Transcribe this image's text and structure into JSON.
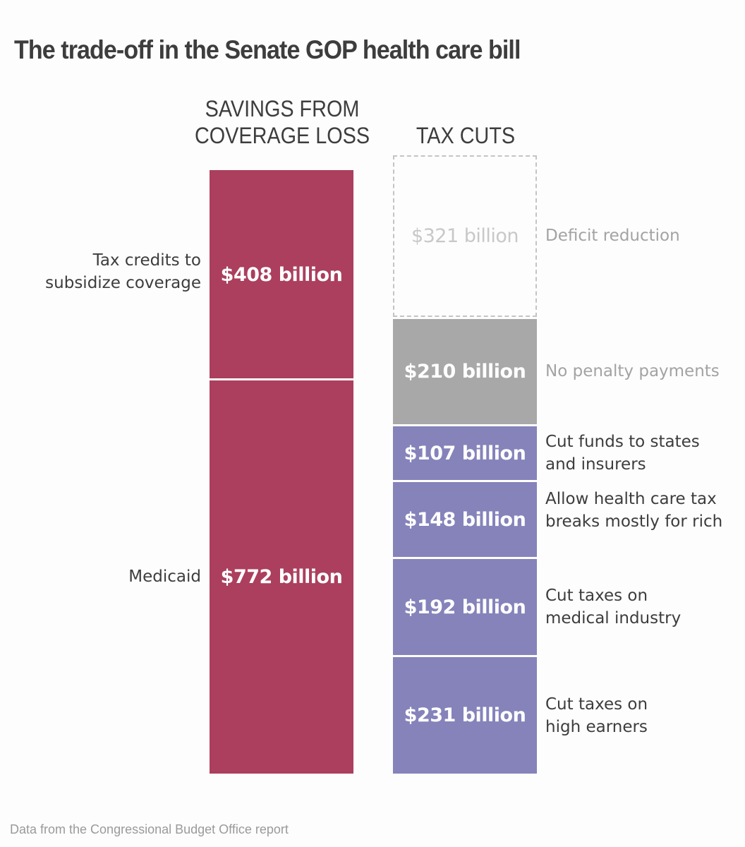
{
  "chart_data": {
    "type": "bar",
    "subtype": "stacked-comparison",
    "title": "The trade-off in the Senate GOP health care bill",
    "units": "billion USD",
    "columns": [
      {
        "name": "SAVINGS FROM COVERAGE LOSS",
        "segments": [
          {
            "label": "Tax credits to\nsubsidize coverage",
            "value": 408,
            "display": "$408 billion",
            "color": "#ab3f5d",
            "style": "solid"
          },
          {
            "label": "Medicaid",
            "value": 772,
            "display": "$772 billion",
            "color": "#ab3f5d",
            "style": "solid"
          }
        ]
      },
      {
        "name": "TAX CUTS",
        "segments": [
          {
            "label": "Deficit reduction",
            "value": 321,
            "display": "$321 billion",
            "color": "#c8c8c8",
            "style": "dashed"
          },
          {
            "label": "No penalty payments",
            "value": 210,
            "display": "$210 billion",
            "color": "#a8a8a8",
            "style": "solid"
          },
          {
            "label": "Cut funds to states\nand insurers",
            "value": 107,
            "display": "$107 billion",
            "color": "#8583ba",
            "style": "solid"
          },
          {
            "label": "Allow health care tax\nbreaks mostly for rich",
            "value": 148,
            "display": "$148 billion",
            "color": "#8583ba",
            "style": "solid"
          },
          {
            "label": "Cut taxes on\nmedical industry",
            "value": 192,
            "display": "$192 billion",
            "color": "#8583ba",
            "style": "solid"
          },
          {
            "label": "Cut taxes on\nhigh earners",
            "value": 231,
            "display": "$231 billion",
            "color": "#8583ba",
            "style": "solid"
          }
        ]
      }
    ],
    "source": "Data from the Congressional Budget Office report"
  }
}
